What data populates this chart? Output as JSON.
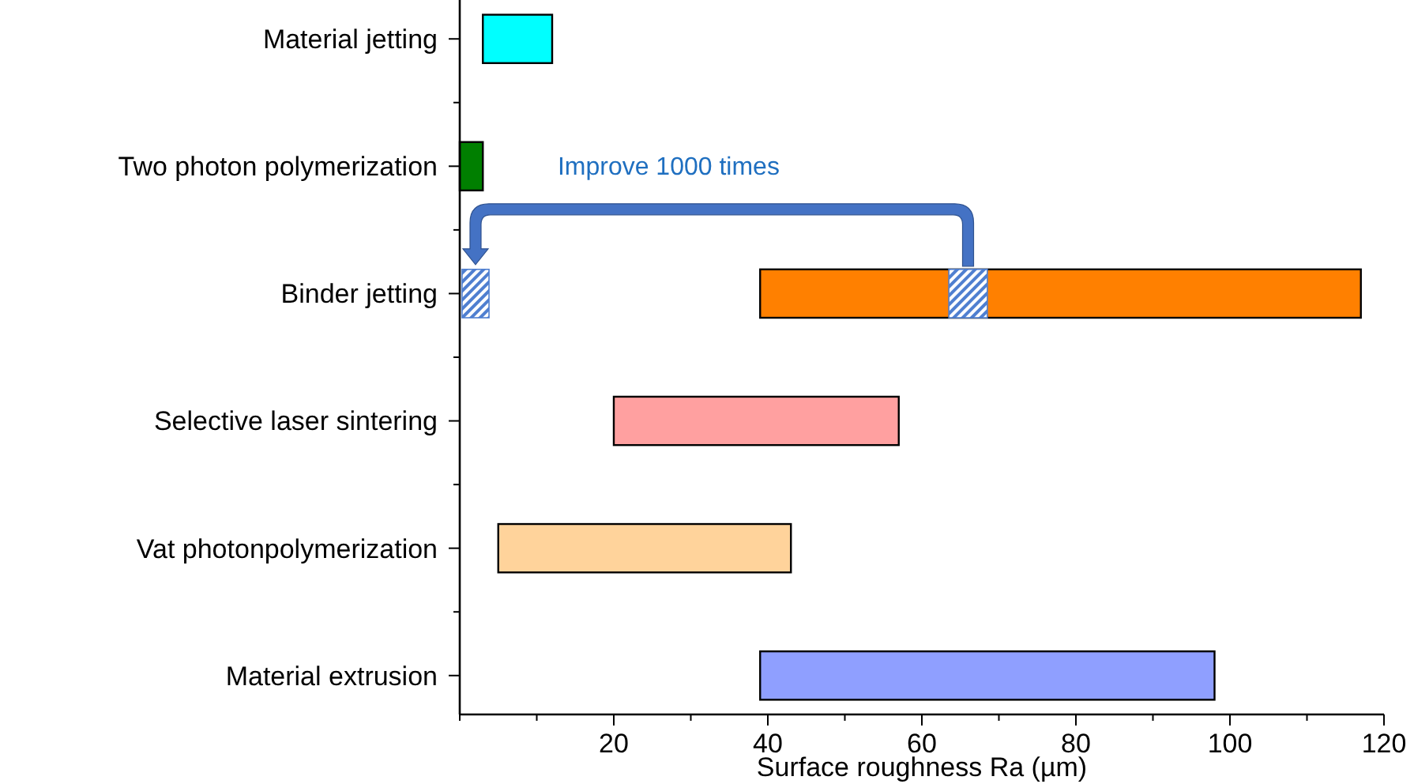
{
  "chart_data": {
    "type": "bar",
    "orientation": "horizontal",
    "xlabel": "Surface roughness Ra (µm)",
    "categories": [
      "Material jetting",
      "Two photon polymerization",
      "Binder jetting",
      "Selective laser sintering",
      "Vat photonpolymerization",
      "Material extrusion"
    ],
    "series": [
      {
        "values": [
          9,
          3,
          78,
          37,
          38,
          59
        ],
        "base": [
          3,
          0,
          39,
          20,
          5,
          39
        ],
        "colors": [
          "#00ffff",
          "#007f00",
          "#ff8000",
          "#ffa0a0",
          "#ffd39b",
          "#8f9fff"
        ]
      },
      {
        "values": [
          null,
          null,
          3.5,
          null,
          null,
          null
        ],
        "base": [
          null,
          null,
          0.3,
          null,
          null,
          null
        ],
        "color": "#4f7fd0"
      },
      {
        "values": [
          null,
          null,
          5,
          null,
          null,
          null
        ],
        "base": [
          null,
          null,
          63.5,
          null,
          null,
          null
        ],
        "color": "#4f7fd0"
      }
    ],
    "xlim": [
      0,
      120
    ],
    "xticks": [
      {
        "value": 0,
        "label": null
      },
      {
        "value": 10,
        "label": null
      },
      20,
      {
        "value": 30,
        "label": null
      },
      40,
      {
        "value": 50,
        "label": null
      },
      60,
      {
        "value": 70,
        "label": null
      },
      80,
      {
        "value": 90,
        "label": null
      },
      100,
      {
        "value": 110,
        "label": null
      },
      120
    ],
    "annotations": [
      "Improve 1000 times"
    ],
    "grid": false
  }
}
